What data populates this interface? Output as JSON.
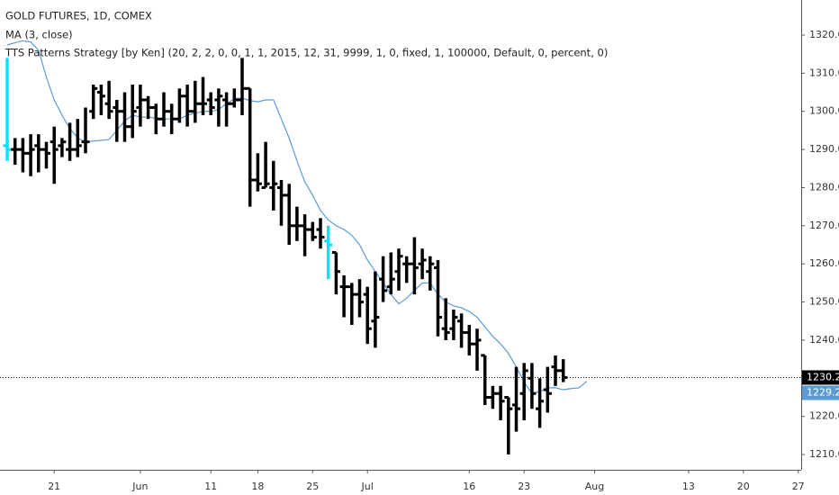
{
  "chart_data": {
    "type": "ohlc",
    "title": "GOLD FUTURES, 1D, COMEX",
    "indicators": [
      {
        "name": "MA (3, close)",
        "color": "#5b9bd5",
        "values": [
          1317.4,
          1318,
          1318.5,
          1318.2,
          1316,
          1309,
          1303,
          1299,
          1295.5,
          1293,
          1292,
          1292.2,
          1292.4,
          1292.6,
          1295,
          1297.5,
          1299,
          1298.5,
          1298.5,
          1298.2,
          1298,
          1298,
          1298,
          1299,
          1299.5,
          1300,
          1300,
          1300.5,
          1302,
          1303.3,
          1303.5,
          1302.8,
          1302.5,
          1303,
          1303,
          1298,
          1293,
          1287,
          1281.5,
          1278,
          1274,
          1271.5,
          1270,
          1269,
          1267.5,
          1265,
          1261,
          1258,
          1255,
          1252,
          1249.5,
          1251,
          1253,
          1255,
          1255,
          1252,
          1250,
          1249,
          1248.5,
          1247.5,
          1246,
          1243.5,
          1241,
          1239,
          1236.5,
          1233,
          1229,
          1226,
          1226.5,
          1227.5,
          1227.5,
          1227,
          1227.3,
          1227.5,
          1229.2,
          null,
          null,
          null,
          null,
          null,
          null,
          null,
          null,
          null,
          null,
          null,
          null,
          null,
          null,
          null,
          null,
          null,
          null,
          null,
          null,
          null,
          null,
          null,
          null,
          null,
          null,
          null
        ]
      },
      {
        "name": "TTS Patterns Strategy [by Ken] (20, 2, 2, 0, 0, 1, 1, 2015, 12, 31, 9999, 1, 0, fixed, 1, 100000, Default, 0, percent, 0)"
      }
    ],
    "categories": [
      null,
      null,
      null,
      null,
      null,
      null,
      "21",
      null,
      null,
      null,
      null,
      null,
      null,
      null,
      null,
      null,
      null,
      "Jun",
      null,
      null,
      null,
      null,
      null,
      null,
      null,
      null,
      "11",
      null,
      null,
      null,
      null,
      null,
      "18",
      null,
      null,
      null,
      null,
      null,
      null,
      "25",
      null,
      null,
      null,
      null,
      null,
      null,
      "Jul",
      null,
      null,
      null,
      null,
      null,
      null,
      null,
      null,
      null,
      null,
      null,
      null,
      "16",
      null,
      null,
      null,
      null,
      null,
      null,
      "23",
      null,
      null,
      null,
      null,
      null,
      null,
      null,
      null,
      "Aug",
      null,
      null,
      null,
      null,
      null,
      null,
      null,
      null,
      null,
      null,
      null,
      "13",
      null,
      null,
      null,
      null,
      null,
      null,
      "20",
      null,
      null,
      null,
      null,
      null,
      null,
      "27"
    ],
    "open": [
      1291,
      1290,
      1290,
      1289,
      1291,
      1290,
      1292,
      1291,
      1290,
      1290,
      1292,
      1300,
      1305,
      1302,
      1301,
      1300,
      1296,
      1301,
      1303,
      1301,
      1298,
      1300,
      1298,
      1304,
      1300,
      1302,
      1303,
      1303,
      1303,
      1302,
      1303,
      1306,
      1282,
      1280,
      1280,
      1280,
      1278,
      1270,
      1270,
      1269,
      1269,
      1266,
      1263,
      1254,
      1254,
      1252,
      1252,
      1245,
      1256,
      1254,
      1258,
      1260,
      1260,
      1260,
      1258,
      1259,
      1243,
      1243,
      1245,
      1242,
      1239,
      1236,
      1225,
      1226,
      1225,
      1223,
      1226,
      1230,
      1222,
      1227,
      1233,
      1232,
      null,
      null,
      null,
      null,
      null,
      null,
      null,
      null,
      null,
      null,
      null,
      null,
      null,
      null,
      null,
      null,
      null,
      null,
      null,
      null,
      null,
      null,
      null,
      null,
      null,
      null,
      null,
      null,
      null,
      null
    ],
    "high": [
      1314,
      1293,
      1293,
      1294,
      1294,
      1292,
      1296,
      1293,
      1297,
      1298,
      1301,
      1307,
      1307,
      1308,
      1303,
      1305,
      1307,
      1307,
      1304,
      1302,
      1305,
      1302,
      1306,
      1307,
      1308,
      1309,
      1305,
      1306,
      1305,
      1306,
      1314,
      1306,
      1289,
      1292,
      1287,
      1282,
      1281,
      1275,
      1273,
      1271,
      1272,
      1270,
      1263,
      1257,
      1255,
      1256,
      1254,
      1258,
      1262,
      1263,
      1264,
      1262,
      1267,
      1264,
      1262,
      1261,
      1251,
      1248,
      1247,
      1244,
      1243,
      1236,
      1228,
      1228,
      1225,
      1233,
      1234,
      1234,
      1230,
      1233,
      1236,
      1235,
      null,
      null,
      null,
      null,
      null,
      null,
      null,
      null,
      null,
      null,
      null,
      null,
      null,
      null,
      null,
      null,
      null,
      null,
      null,
      null,
      null,
      null,
      null,
      null,
      null,
      null,
      null,
      null,
      null,
      null
    ],
    "low": [
      1287,
      1286,
      1284,
      1283,
      1284,
      1285,
      1281,
      1288,
      1287,
      1288,
      1289,
      1298,
      1299,
      1298,
      1292,
      1292,
      1293,
      1296,
      1298,
      1294,
      1296,
      1294,
      1297,
      1296,
      1297,
      1299,
      1299,
      1296,
      1296,
      1301,
      1299,
      1275,
      1279,
      1280,
      1274,
      1270,
      1265,
      1266,
      1262,
      1266,
      1264,
      1256,
      1252,
      1246,
      1244,
      1246,
      1239,
      1238,
      1250,
      1252,
      1253,
      1255,
      1252,
      1256,
      1253,
      1241,
      1240,
      1240,
      1238,
      1236,
      1232,
      1223,
      1222,
      1219,
      1210,
      1216,
      1219,
      1222,
      1217,
      1221,
      1228,
      1229,
      null,
      null,
      null,
      null,
      null,
      null,
      null,
      null,
      null,
      null,
      null,
      null,
      null,
      null,
      null,
      null,
      null,
      null,
      null,
      null,
      null,
      null,
      null,
      null,
      null,
      null,
      null,
      null,
      null,
      null
    ],
    "close": [
      1290,
      1290,
      1289,
      1290,
      1290,
      1289,
      1290,
      1292,
      1290,
      1291,
      1292,
      1306,
      1304,
      1300,
      1300,
      1296,
      1300,
      1303,
      1301,
      1298,
      1300,
      1298,
      1304,
      1300,
      1302,
      1302,
      1301,
      1304,
      1302,
      1303,
      1306,
      1282,
      1281,
      1281,
      1281,
      1278,
      1270,
      1270,
      1269,
      1267,
      1267,
      1265,
      1258,
      1254,
      1252,
      1250,
      1243,
      1246,
      1253,
      1256,
      1262,
      1260,
      1259,
      1261,
      1260,
      1246,
      1242,
      1246,
      1242,
      1239,
      1240,
      1225,
      1226,
      1224,
      1222,
      1222,
      1232,
      1226,
      1224,
      1226,
      1232,
      1230.2,
      null,
      null,
      null,
      null,
      null,
      null,
      null,
      null,
      null,
      null,
      null,
      null,
      null,
      null,
      null,
      null,
      null,
      null,
      null,
      null,
      null,
      null,
      null,
      null,
      null,
      null,
      null,
      null,
      null,
      null
    ],
    "bar_colors": [
      "#00e5ff",
      "#000000",
      "#000000",
      "#000000",
      "#000000",
      "#000000",
      "#000000",
      "#000000",
      "#000000",
      "#000000",
      "#000000",
      "#000000",
      "#000000",
      "#000000",
      "#000000",
      "#000000",
      "#000000",
      "#000000",
      "#000000",
      "#000000",
      "#000000",
      "#000000",
      "#000000",
      "#000000",
      "#000000",
      "#000000",
      "#000000",
      "#000000",
      "#000000",
      "#000000",
      "#000000",
      "#000000",
      "#000000",
      "#000000",
      "#000000",
      "#000000",
      "#000000",
      "#000000",
      "#000000",
      "#000000",
      "#000000",
      "#00e5ff",
      "#000000",
      "#000000",
      "#000000",
      "#000000",
      "#000000",
      "#000000",
      "#000000",
      "#000000",
      "#000000",
      "#000000",
      "#000000",
      "#000000",
      "#000000",
      "#000000",
      "#000000",
      "#000000",
      "#000000",
      "#000000",
      "#000000",
      "#000000",
      "#000000",
      "#000000",
      "#000000",
      "#000000",
      "#000000",
      "#000000",
      "#000000",
      "#000000",
      "#000000",
      "#000000",
      null,
      null,
      null,
      null,
      null,
      null,
      null,
      null,
      null,
      null,
      null,
      null,
      null,
      null,
      null,
      null,
      null,
      null,
      null,
      null,
      null,
      null,
      null,
      null,
      null,
      null,
      null,
      null,
      null,
      null
    ],
    "last_price_color": "#000000",
    "ylim": [
      1206,
      1329.2
    ],
    "yticks": [
      {
        "value": 1210,
        "label": "1210.0"
      },
      {
        "value": 1220,
        "label": "1220.0"
      },
      {
        "value": 1230,
        "label": "1230.0"
      },
      {
        "value": 1240,
        "label": "1240.0"
      },
      {
        "value": 1250,
        "label": "1250.0"
      },
      {
        "value": 1260,
        "label": "1260.0"
      },
      {
        "value": 1270,
        "label": "1270.0"
      },
      {
        "value": 1280,
        "label": "1280.0"
      },
      {
        "value": 1290,
        "label": "1290.0"
      },
      {
        "value": 1300,
        "label": "1300.0"
      },
      {
        "value": 1310,
        "label": "1310.0"
      },
      {
        "value": 1320,
        "label": "1320.0"
      }
    ]
  }
}
